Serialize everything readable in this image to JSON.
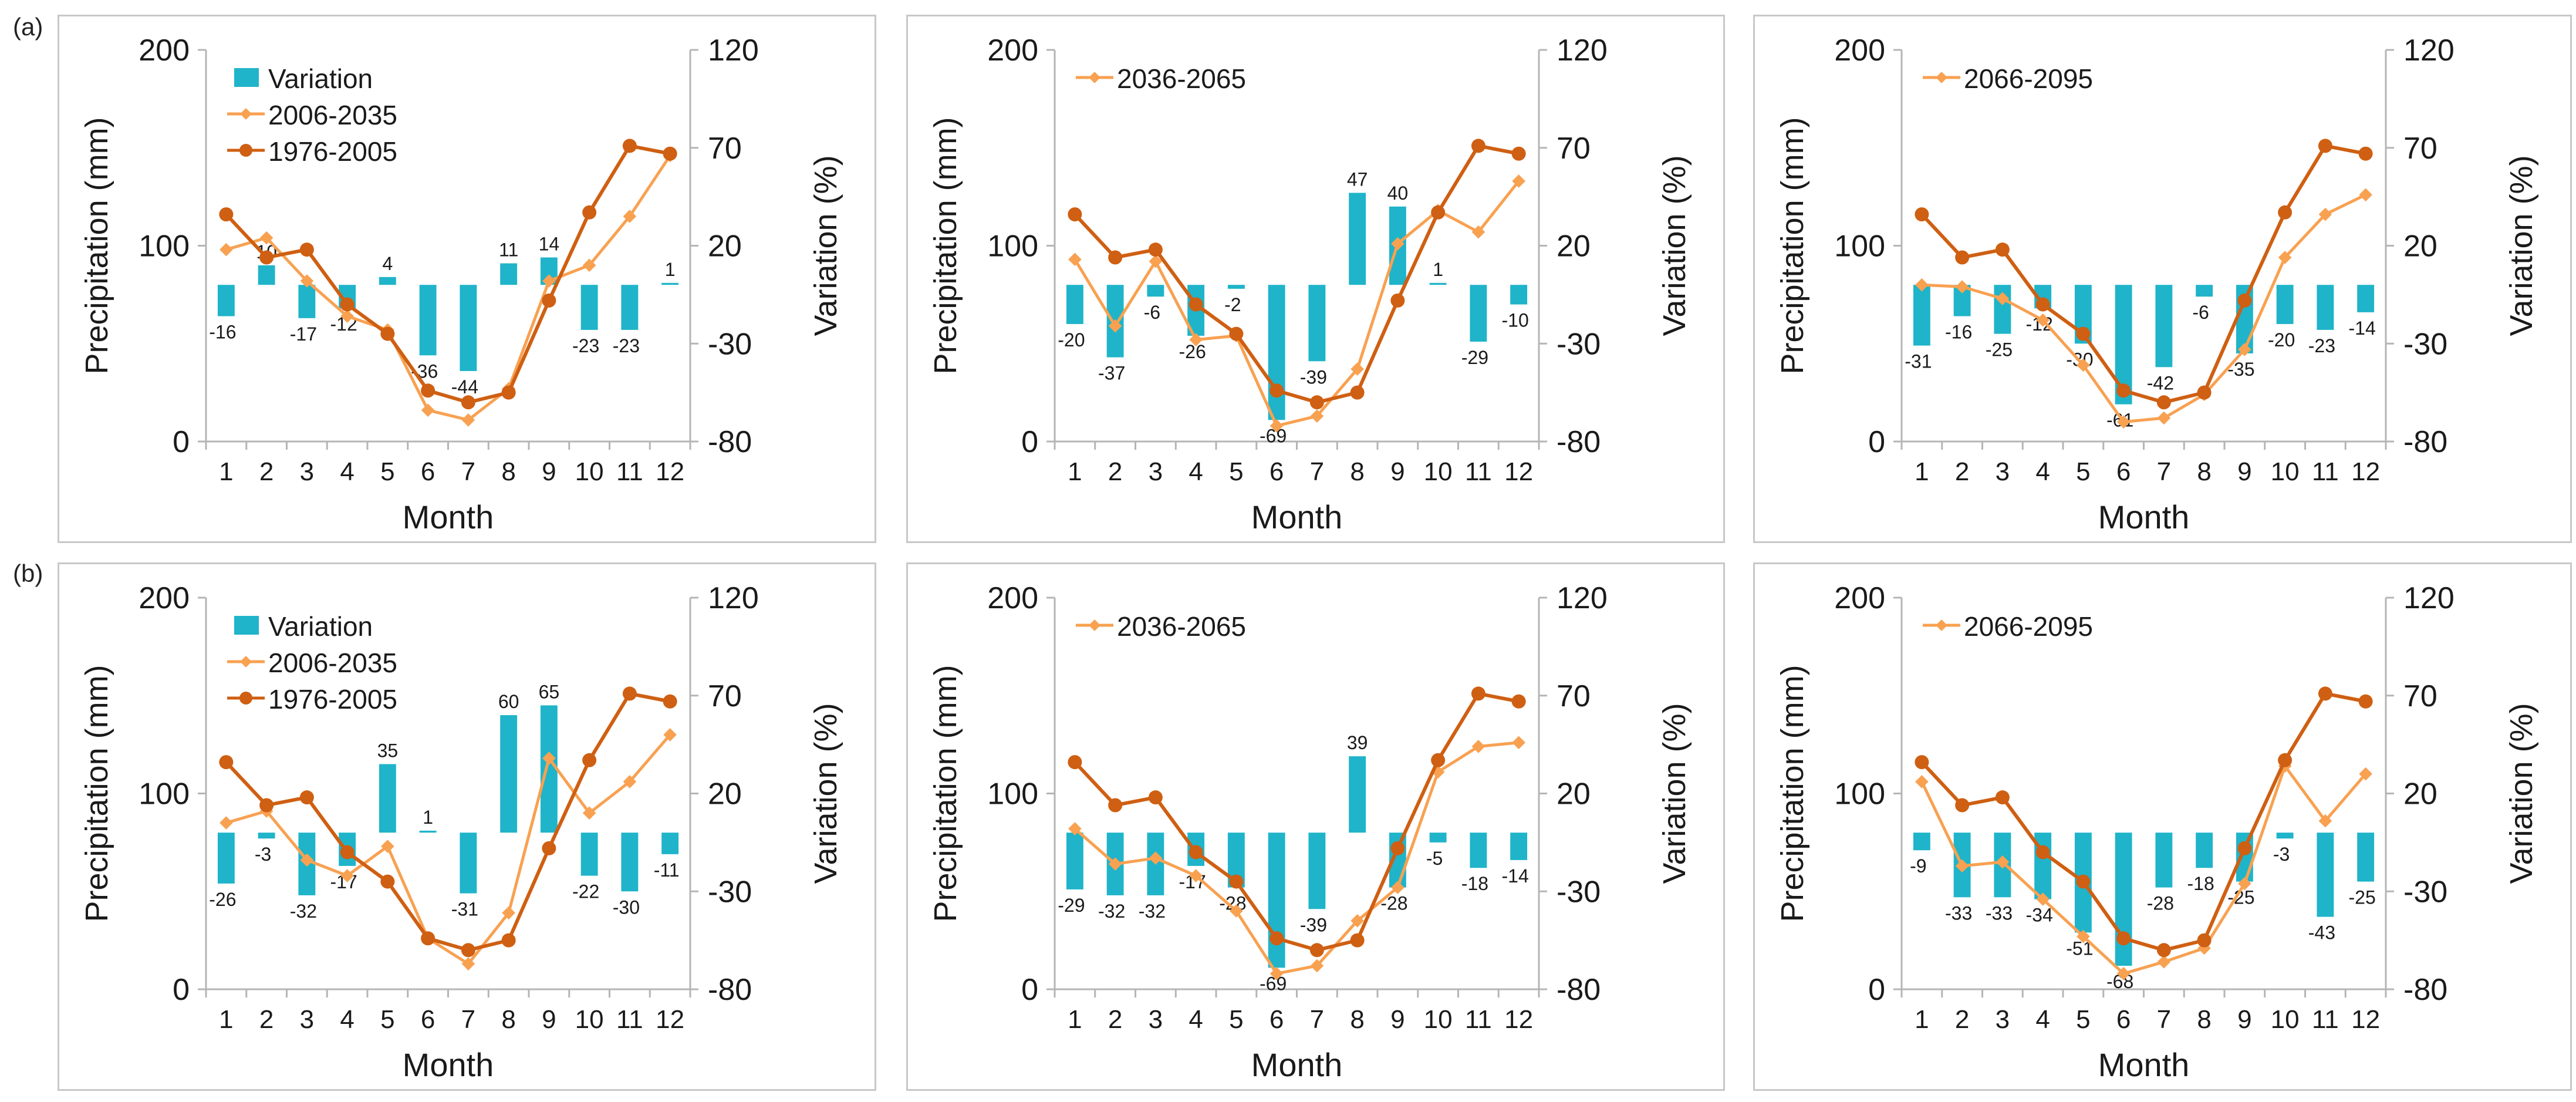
{
  "figure": {
    "row_labels": [
      "(a)",
      "(b)"
    ],
    "colors": {
      "bar": "#1fb4c9",
      "future": "#f8a151",
      "baseline": "#cf5f12",
      "axis": "#b5b5b5"
    }
  },
  "chart_data": [
    {
      "type": "bar+line",
      "row": "(a)",
      "panel": 1,
      "xlabel": "Month",
      "ylabel": "Precipitation (mm)",
      "y2label": "Variation (%)",
      "ylim": [
        0,
        200
      ],
      "yticks": [
        0,
        100,
        200
      ],
      "y2lim": [
        -80,
        120
      ],
      "y2ticks": [
        -80,
        -30,
        20,
        70,
        120
      ],
      "categories": [
        "1",
        "2",
        "3",
        "4",
        "5",
        "6",
        "7",
        "8",
        "9",
        "10",
        "11",
        "12"
      ],
      "legend": [
        "Variation",
        "2006-2035",
        "1976-2005"
      ],
      "series": [
        {
          "name": "Variation",
          "kind": "bar",
          "axis": "right",
          "values": [
            -16,
            10,
            -17,
            -12,
            4,
            -36,
            -44,
            11,
            14,
            -23,
            -23,
            1
          ]
        },
        {
          "name": "2006-2035",
          "kind": "line",
          "axis": "left",
          "values": [
            98,
            104,
            82,
            64,
            57,
            16,
            11,
            27,
            82,
            90,
            115,
            146
          ]
        },
        {
          "name": "1976-2005",
          "kind": "line",
          "axis": "left",
          "values": [
            116,
            94,
            98,
            70,
            55,
            26,
            20,
            25,
            72,
            117,
            151,
            147
          ]
        }
      ]
    },
    {
      "type": "bar+line",
      "row": "(a)",
      "panel": 2,
      "xlabel": "Month",
      "ylabel": "Precipitation (mm)",
      "y2label": "Variation (%)",
      "ylim": [
        0,
        200
      ],
      "yticks": [
        0,
        100,
        200
      ],
      "y2lim": [
        -80,
        120
      ],
      "y2ticks": [
        -80,
        -30,
        20,
        70,
        120
      ],
      "categories": [
        "1",
        "2",
        "3",
        "4",
        "5",
        "6",
        "7",
        "8",
        "9",
        "10",
        "11",
        "12"
      ],
      "legend": [
        "2036-2065"
      ],
      "series": [
        {
          "name": "Variation",
          "kind": "bar",
          "axis": "right",
          "values": [
            -20,
            -37,
            -6,
            -26,
            -2,
            -69,
            -39,
            47,
            40,
            1,
            -29,
            -10
          ]
        },
        {
          "name": "2036-2065",
          "kind": "line",
          "axis": "left",
          "values": [
            93,
            59,
            92,
            52,
            54,
            8,
            13,
            37,
            101,
            118,
            107,
            133
          ]
        },
        {
          "name": "1976-2005",
          "kind": "line",
          "axis": "left",
          "values": [
            116,
            94,
            98,
            70,
            55,
            26,
            20,
            25,
            72,
            117,
            151,
            147
          ]
        }
      ]
    },
    {
      "type": "bar+line",
      "row": "(a)",
      "panel": 3,
      "xlabel": "Month",
      "ylabel": "Precipitation (mm)",
      "y2label": "Variation (%)",
      "ylim": [
        0,
        200
      ],
      "yticks": [
        0,
        100,
        200
      ],
      "y2lim": [
        -80,
        120
      ],
      "y2ticks": [
        -80,
        -30,
        20,
        70,
        120
      ],
      "categories": [
        "1",
        "2",
        "3",
        "4",
        "5",
        "6",
        "7",
        "8",
        "9",
        "10",
        "11",
        "12"
      ],
      "legend": [
        "2066-2095"
      ],
      "series": [
        {
          "name": "Variation",
          "kind": "bar",
          "axis": "right",
          "values": [
            -31,
            -16,
            -25,
            -12,
            -30,
            -61,
            -42,
            -6,
            -35,
            -20,
            -23,
            -14
          ]
        },
        {
          "name": "2066-2095",
          "kind": "line",
          "axis": "left",
          "values": [
            80,
            79,
            73,
            62,
            39,
            10,
            12,
            24,
            47,
            94,
            116,
            126
          ]
        },
        {
          "name": "1976-2005",
          "kind": "line",
          "axis": "left",
          "values": [
            116,
            94,
            98,
            70,
            55,
            26,
            20,
            25,
            72,
            117,
            151,
            147
          ]
        }
      ]
    },
    {
      "type": "bar+line",
      "row": "(b)",
      "panel": 1,
      "xlabel": "Month",
      "ylabel": "Precipitation (mm)",
      "y2label": "Variation (%)",
      "ylim": [
        0,
        200
      ],
      "yticks": [
        0,
        100,
        200
      ],
      "y2lim": [
        -80,
        120
      ],
      "y2ticks": [
        -80,
        -30,
        20,
        70,
        120
      ],
      "categories": [
        "1",
        "2",
        "3",
        "4",
        "5",
        "6",
        "7",
        "8",
        "9",
        "10",
        "11",
        "12"
      ],
      "legend": [
        "Variation",
        "2006-2035",
        "1976-2005"
      ],
      "series": [
        {
          "name": "Variation",
          "kind": "bar",
          "axis": "right",
          "values": [
            -26,
            -3,
            -32,
            -17,
            35,
            1,
            -31,
            60,
            65,
            -22,
            -30,
            -11
          ]
        },
        {
          "name": "2006-2035",
          "kind": "line",
          "axis": "left",
          "values": [
            85,
            91,
            66,
            58,
            73,
            26,
            13,
            39,
            118,
            90,
            106,
            130
          ]
        },
        {
          "name": "1976-2005",
          "kind": "line",
          "axis": "left",
          "values": [
            116,
            94,
            98,
            70,
            55,
            26,
            20,
            25,
            72,
            117,
            151,
            147
          ]
        }
      ]
    },
    {
      "type": "bar+line",
      "row": "(b)",
      "panel": 2,
      "xlabel": "Month",
      "ylabel": "Precipitation (mm)",
      "y2label": "Variation (%)",
      "ylim": [
        0,
        200
      ],
      "yticks": [
        0,
        100,
        200
      ],
      "y2lim": [
        -80,
        120
      ],
      "y2ticks": [
        -80,
        -30,
        20,
        70,
        120
      ],
      "categories": [
        "1",
        "2",
        "3",
        "4",
        "5",
        "6",
        "7",
        "8",
        "9",
        "10",
        "11",
        "12"
      ],
      "legend": [
        "2036-2065"
      ],
      "series": [
        {
          "name": "Variation",
          "kind": "bar",
          "axis": "right",
          "values": [
            -29,
            -32,
            -32,
            -17,
            -28,
            -69,
            -39,
            39,
            -28,
            -5,
            -18,
            -14
          ]
        },
        {
          "name": "2036-2065",
          "kind": "line",
          "axis": "left",
          "values": [
            82,
            64,
            67,
            58,
            40,
            8,
            12,
            35,
            52,
            111,
            124,
            126
          ]
        },
        {
          "name": "1976-2005",
          "kind": "line",
          "axis": "left",
          "values": [
            116,
            94,
            98,
            70,
            55,
            26,
            20,
            25,
            72,
            117,
            151,
            147
          ]
        }
      ]
    },
    {
      "type": "bar+line",
      "row": "(b)",
      "panel": 3,
      "xlabel": "Month",
      "ylabel": "Precipitation (mm)",
      "y2label": "Variation (%)",
      "ylim": [
        0,
        200
      ],
      "yticks": [
        0,
        100,
        200
      ],
      "y2lim": [
        -80,
        120
      ],
      "y2ticks": [
        -80,
        -30,
        20,
        70,
        120
      ],
      "categories": [
        "1",
        "2",
        "3",
        "4",
        "5",
        "6",
        "7",
        "8",
        "9",
        "10",
        "11",
        "12"
      ],
      "legend": [
        "2066-2095"
      ],
      "series": [
        {
          "name": "Variation",
          "kind": "bar",
          "axis": "right",
          "values": [
            -9,
            -33,
            -33,
            -34,
            -51,
            -68,
            -28,
            -18,
            -25,
            -3,
            -43,
            -25
          ]
        },
        {
          "name": "2066-2095",
          "kind": "line",
          "axis": "left",
          "values": [
            106,
            63,
            65,
            46,
            27,
            8,
            14,
            21,
            54,
            114,
            86,
            110
          ]
        },
        {
          "name": "1976-2005",
          "kind": "line",
          "axis": "left",
          "values": [
            116,
            94,
            98,
            70,
            55,
            26,
            20,
            25,
            72,
            117,
            151,
            147
          ]
        }
      ]
    }
  ]
}
